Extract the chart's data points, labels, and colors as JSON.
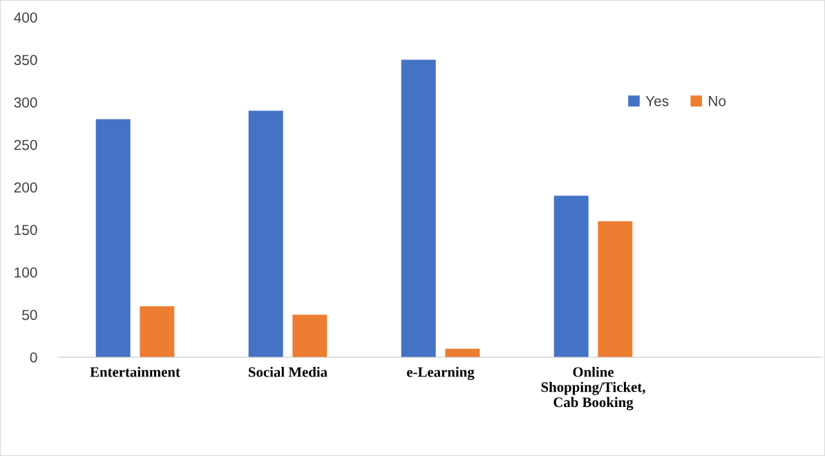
{
  "chart_data": {
    "type": "bar",
    "categories": [
      "Entertainment",
      "Social Media",
      "e-Learning",
      "Online\nShopping/Ticket,\nCab Booking",
      null
    ],
    "series": [
      {
        "name": "Yes",
        "color": "#4472c4",
        "values": [
          280,
          290,
          350,
          190,
          null
        ]
      },
      {
        "name": "No",
        "color": "#ed7d31",
        "values": [
          60,
          50,
          10,
          160,
          null
        ]
      }
    ],
    "ylim": [
      0,
      400
    ],
    "yticks": [
      0,
      50,
      100,
      150,
      200,
      250,
      300,
      350,
      400
    ],
    "grid": false,
    "legend": "top right"
  }
}
